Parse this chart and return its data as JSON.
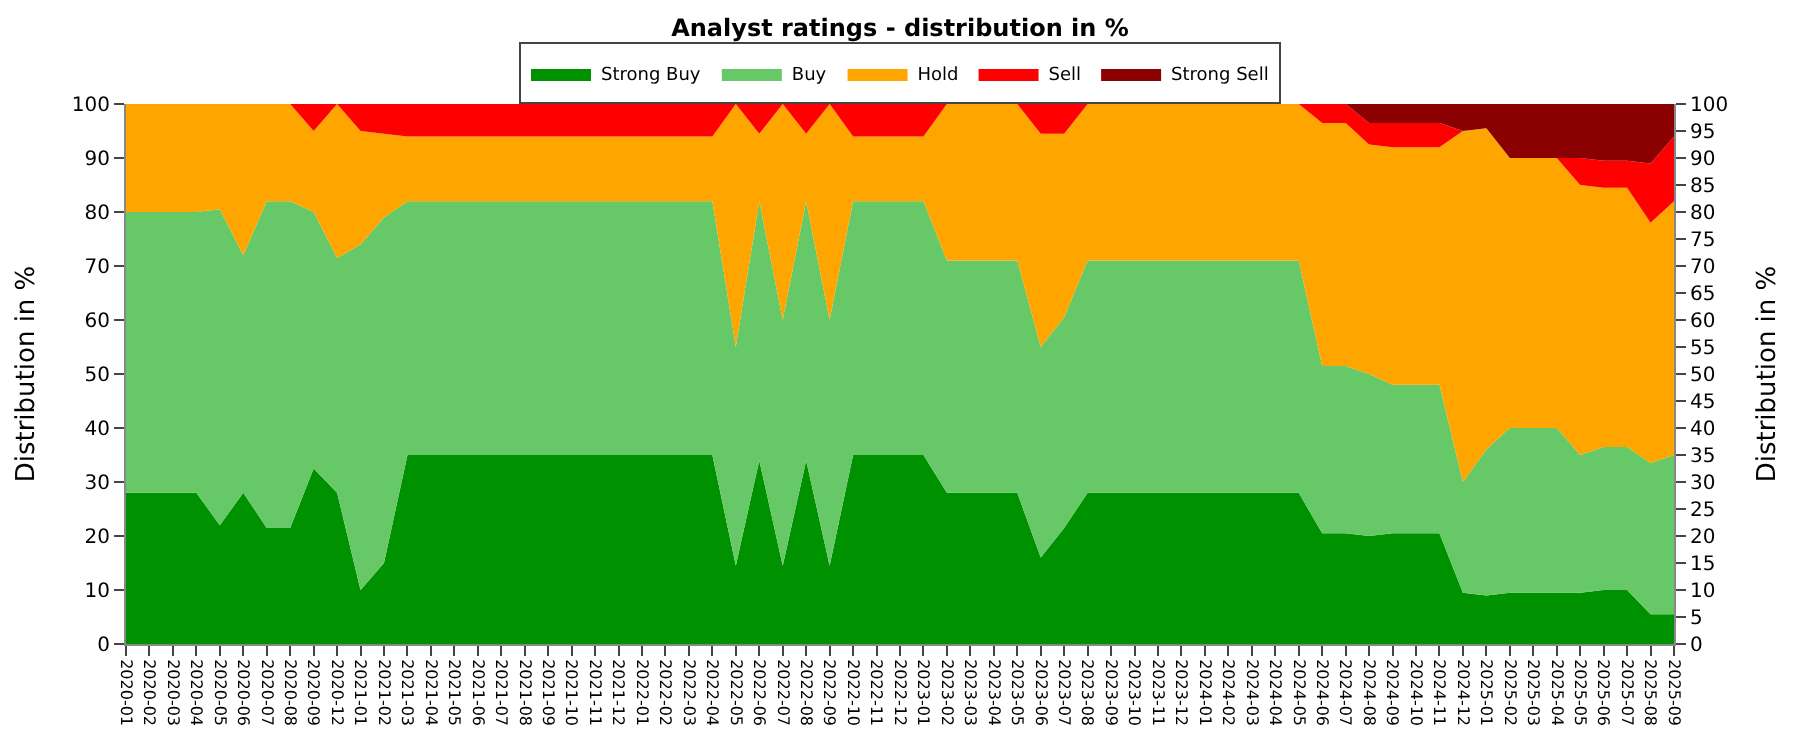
{
  "chart_data": {
    "type": "area",
    "stacked": true,
    "title": "Analyst ratings - distribution in %",
    "ylabel": "Distribution in %",
    "y2label": "Distribution in %",
    "categories": [
      "2020-01",
      "2020-02",
      "2020-03",
      "2020-04",
      "2020-05",
      "2020-06",
      "2020-07",
      "2020-08",
      "2020-09",
      "2020-12",
      "2021-01",
      "2021-02",
      "2021-03",
      "2021-04",
      "2021-05",
      "2021-06",
      "2021-07",
      "2021-08",
      "2021-09",
      "2021-10",
      "2021-11",
      "2021-12",
      "2022-01",
      "2022-02",
      "2022-03",
      "2022-04",
      "2022-05",
      "2022-06",
      "2022-07",
      "2022-08",
      "2022-09",
      "2022-10",
      "2022-11",
      "2022-12",
      "2023-01",
      "2023-02",
      "2023-03",
      "2023-04",
      "2023-05",
      "2023-06",
      "2023-07",
      "2023-08",
      "2023-09",
      "2023-10",
      "2023-11",
      "2023-12",
      "2024-01",
      "2024-02",
      "2024-03",
      "2024-04",
      "2024-05",
      "2024-06",
      "2024-07",
      "2024-08",
      "2024-09",
      "2024-10",
      "2024-11",
      "2024-12",
      "2025-01",
      "2025-02",
      "2025-03",
      "2025-04",
      "2025-05",
      "2025-06",
      "2025-07",
      "2025-08",
      "2025-09"
    ],
    "series": [
      {
        "name": "Strong Buy",
        "color": "#009100",
        "values": [
          28,
          28,
          28,
          28,
          22,
          28,
          21.5,
          21.5,
          32.5,
          28,
          10,
          15,
          35,
          35,
          35,
          35,
          35,
          35,
          35,
          35,
          35,
          35,
          35,
          35,
          35,
          35,
          14.5,
          34,
          14.5,
          34,
          14.5,
          35,
          35,
          35,
          35,
          28,
          28,
          28,
          28,
          16,
          21.5,
          28,
          28,
          28,
          28,
          28,
          28,
          28,
          28,
          28,
          28,
          20.5,
          20.5,
          20,
          20.5,
          20.5,
          20.5,
          9.5,
          9,
          9.5,
          9.5,
          9.5,
          9.5,
          10,
          10,
          5.5,
          5.5
        ]
      },
      {
        "name": "Buy",
        "color": "#66c866",
        "values": [
          52,
          52,
          52,
          52,
          58.5,
          44,
          60.5,
          60.5,
          47.5,
          43.5,
          64,
          64,
          47,
          47,
          47,
          47,
          47,
          47,
          47,
          47,
          47,
          47,
          47,
          47,
          47,
          47,
          40.5,
          48,
          45.5,
          48,
          45.5,
          47,
          47,
          47,
          47,
          43,
          43,
          43,
          43,
          39,
          39,
          43,
          43,
          43,
          43,
          43,
          43,
          43,
          43,
          43,
          43,
          31,
          31,
          30,
          27.5,
          27.5,
          27.5,
          20.5,
          27,
          30.5,
          30.5,
          30.5,
          25.5,
          26.5,
          26.5,
          28,
          29.5
        ]
      },
      {
        "name": "Hold",
        "color": "#ffa500",
        "values": [
          20,
          20,
          20,
          20,
          19.5,
          28,
          18,
          18,
          15,
          28.5,
          21,
          15.5,
          12,
          12,
          12,
          12,
          12,
          12,
          12,
          12,
          12,
          12,
          12,
          12,
          12,
          12,
          45,
          12.5,
          40,
          12.5,
          40,
          12,
          12,
          12,
          12,
          29,
          29,
          29,
          29,
          39.5,
          34,
          29,
          29,
          29,
          29,
          29,
          29,
          29,
          29,
          29,
          29,
          45,
          45,
          42.5,
          44,
          44,
          44,
          65,
          59.5,
          50,
          50,
          50,
          50,
          48,
          48,
          44.5,
          47
        ]
      },
      {
        "name": "Sell",
        "color": "#ff0000",
        "values": [
          0,
          0,
          0,
          0,
          0,
          0,
          0,
          0,
          5,
          0,
          5,
          5.5,
          6,
          6,
          6,
          6,
          6,
          6,
          6,
          6,
          6,
          6,
          6,
          6,
          6,
          6,
          0,
          5.5,
          0,
          5.5,
          0,
          6,
          6,
          6,
          6,
          0,
          0,
          0,
          0,
          5.5,
          5.5,
          0,
          0,
          0,
          0,
          0,
          0,
          0,
          0,
          0,
          0,
          3.5,
          3.5,
          4,
          4.5,
          4.5,
          4.5,
          0,
          0,
          0,
          0,
          0,
          5,
          5,
          5,
          11,
          12
        ]
      },
      {
        "name": "Strong Sell",
        "color": "#8b0000",
        "values": [
          0,
          0,
          0,
          0,
          0,
          0,
          0,
          0,
          0,
          0,
          0,
          0,
          0,
          0,
          0,
          0,
          0,
          0,
          0,
          0,
          0,
          0,
          0,
          0,
          0,
          0,
          0,
          0,
          0,
          0,
          0,
          0,
          0,
          0,
          0,
          0,
          0,
          0,
          0,
          0,
          0,
          0,
          0,
          0,
          0,
          0,
          0,
          0,
          0,
          0,
          0,
          0,
          0,
          3.5,
          3.5,
          3.5,
          3.5,
          5,
          4.5,
          10,
          10,
          10,
          10,
          10.5,
          10.5,
          11,
          6
        ]
      }
    ],
    "ylim": [
      0,
      100
    ],
    "yticks": [
      0,
      10,
      20,
      30,
      40,
      50,
      60,
      70,
      80,
      90,
      100
    ],
    "y2lim": [
      0,
      100
    ],
    "y2ticks": [
      0,
      5,
      10,
      15,
      20,
      25,
      30,
      35,
      40,
      45,
      50,
      55,
      60,
      65,
      70,
      75,
      80,
      85,
      90,
      95,
      100
    ],
    "grid": "y",
    "legend": "top"
  }
}
